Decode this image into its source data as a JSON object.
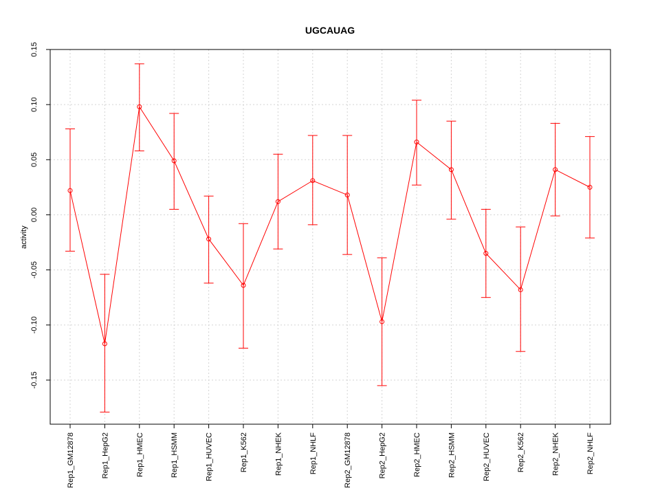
{
  "chart_data": {
    "type": "line",
    "title": "UGCAUAG",
    "xlabel": "",
    "ylabel": "activity",
    "ylim": [
      -0.19,
      0.15
    ],
    "yticks": [
      -0.15,
      -0.1,
      -0.05,
      0.0,
      0.05,
      0.1,
      0.15
    ],
    "ytick_labels": [
      "-0.15",
      "-0.10",
      "-0.05",
      "0.00",
      "0.05",
      "0.10",
      "0.15"
    ],
    "grid": true,
    "categories": [
      "Rep1_GM12878",
      "Rep1_HepG2",
      "Rep1_HMEC",
      "Rep1_HSMM",
      "Rep1_HUVEC",
      "Rep1_K562",
      "Rep1_NHEK",
      "Rep1_NHLF",
      "Rep2_GM12878",
      "Rep2_HepG2",
      "Rep2_HMEC",
      "Rep2_HSMM",
      "Rep2_HUVEC",
      "Rep2_K562",
      "Rep2_NHEK",
      "Rep2_NHLF"
    ],
    "series": [
      {
        "name": "activity",
        "color": "#ff0000",
        "values": [
          0.022,
          -0.117,
          0.098,
          0.049,
          -0.022,
          -0.064,
          0.012,
          0.031,
          0.018,
          -0.097,
          0.066,
          0.041,
          -0.035,
          -0.068,
          0.041,
          0.025
        ],
        "upper": [
          0.078,
          -0.054,
          0.137,
          0.092,
          0.017,
          -0.008,
          0.055,
          0.072,
          0.072,
          -0.039,
          0.104,
          0.085,
          0.005,
          -0.011,
          0.083,
          0.071
        ],
        "lower": [
          -0.033,
          -0.179,
          0.058,
          0.005,
          -0.062,
          -0.121,
          -0.031,
          -0.009,
          -0.036,
          -0.155,
          0.027,
          -0.004,
          -0.075,
          -0.124,
          -0.001,
          -0.021
        ]
      }
    ]
  }
}
